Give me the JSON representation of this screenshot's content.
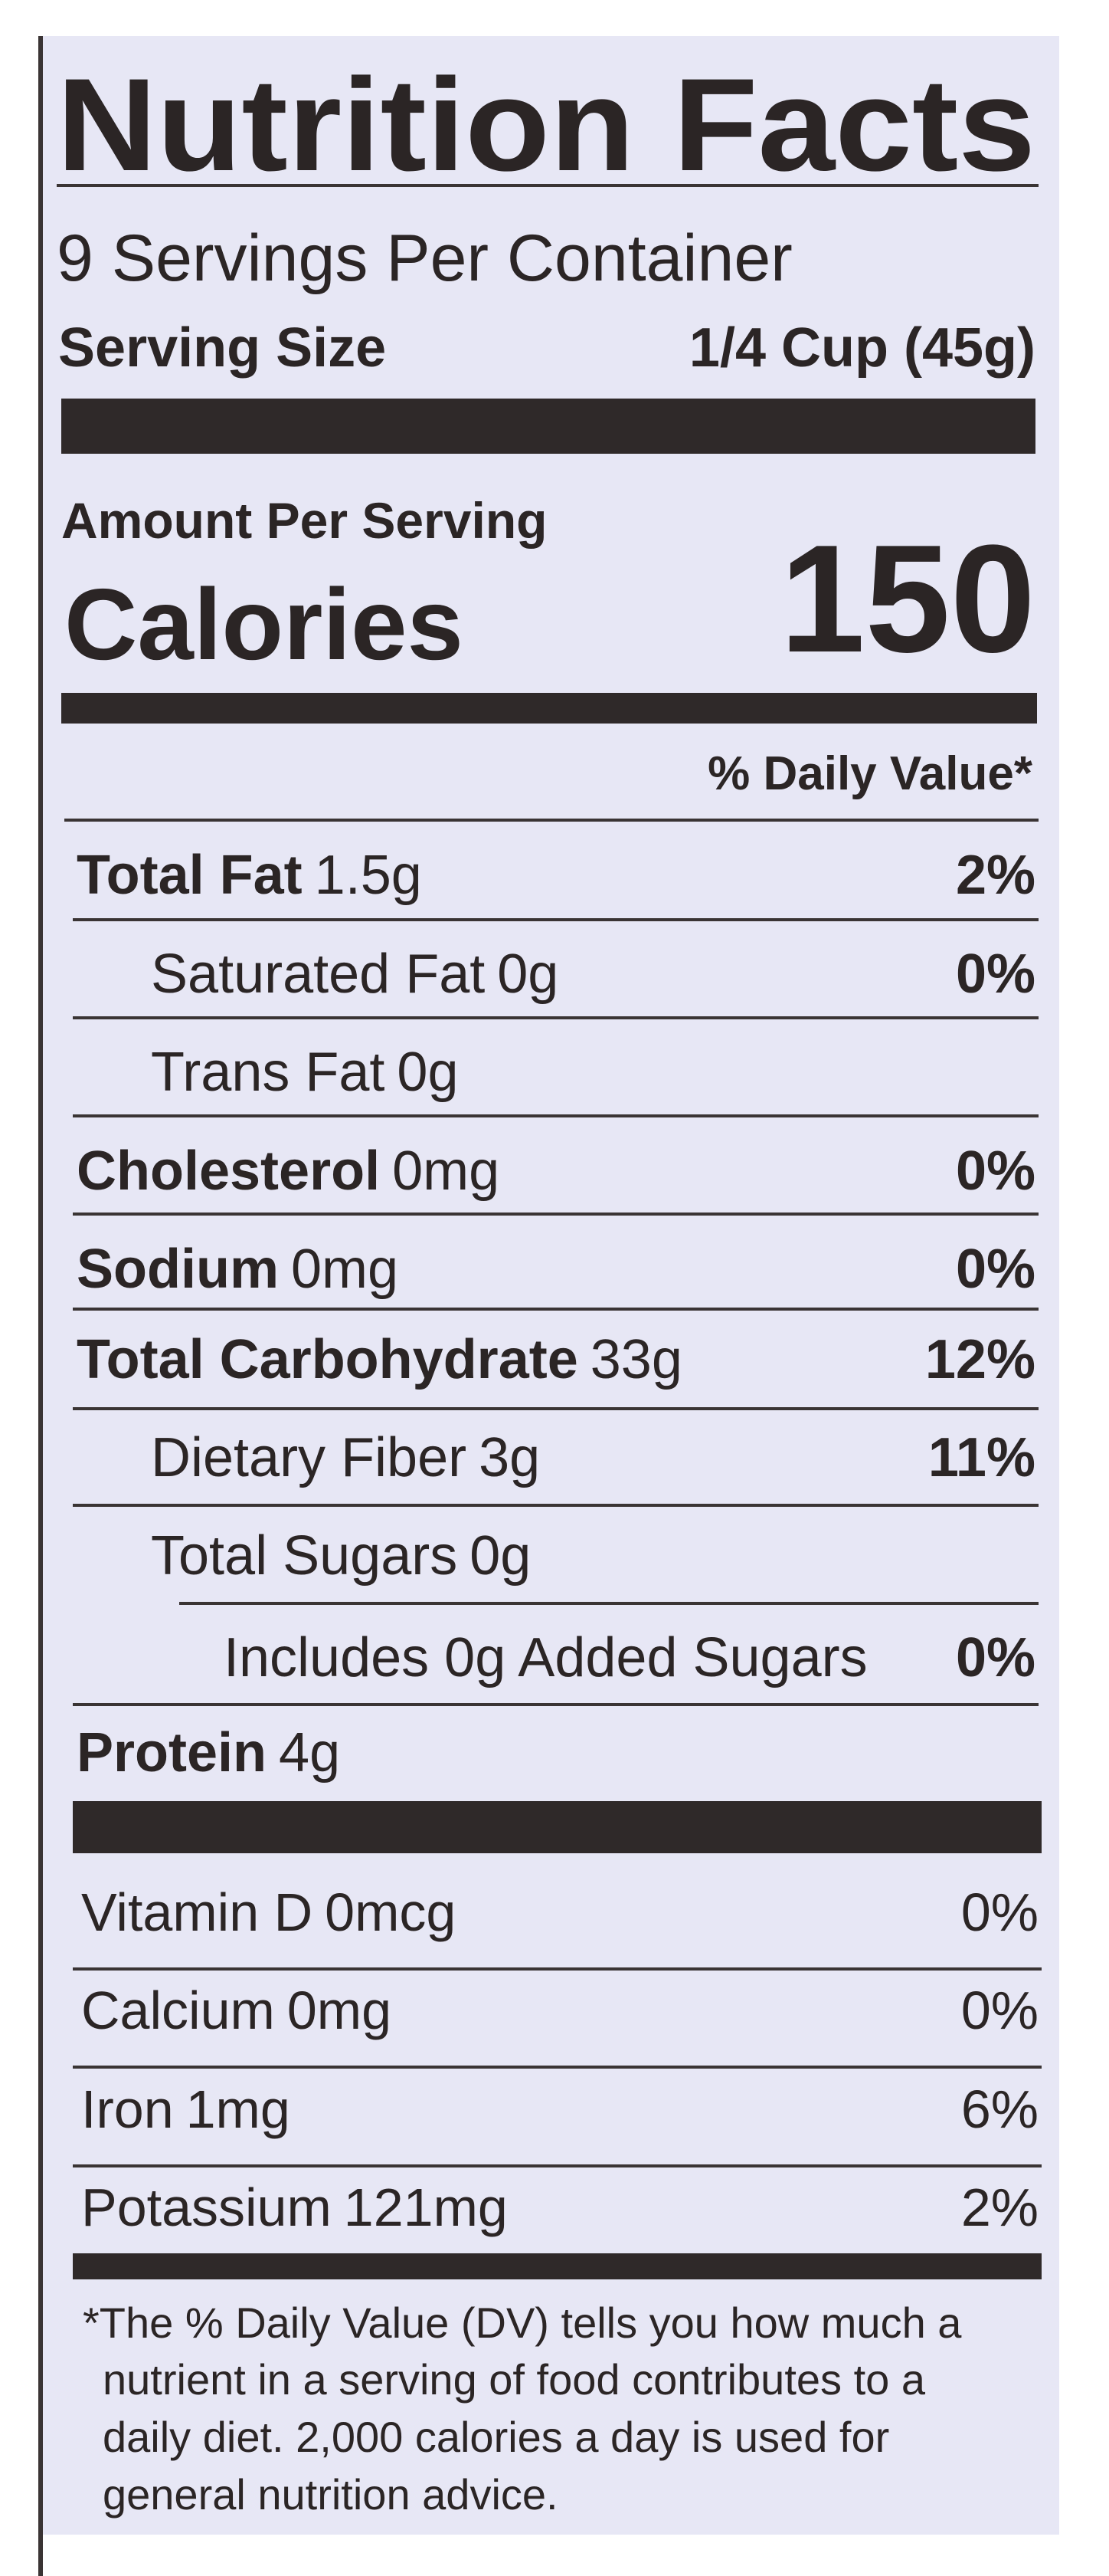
{
  "header": {
    "title": "Nutrition Facts"
  },
  "servings": "9 Servings Per Container",
  "serving_size": {
    "label": "Serving Size",
    "value": "1/4 Cup (45g)"
  },
  "calories": {
    "amount_label": "Amount Per Serving",
    "label": "Calories",
    "value": "150"
  },
  "dv_header": "% Daily Value*",
  "rows": [
    {
      "name": "Total Fat",
      "amount": "1.5g",
      "dv": "2%"
    },
    {
      "name": "Saturated Fat",
      "amount": "0g",
      "dv": "0%"
    },
    {
      "name": "Trans Fat",
      "amount": "0g"
    },
    {
      "name": "Cholesterol",
      "amount": "0mg",
      "dv": "0%"
    },
    {
      "name": "Sodium",
      "amount": "0mg",
      "dv": "0%"
    },
    {
      "name": "Total Carbohydrate",
      "amount": "33g",
      "dv": "12%"
    },
    {
      "name": "Dietary Fiber",
      "amount": "3g",
      "dv": "11%"
    },
    {
      "name": "Total Sugars",
      "amount": "0g"
    },
    {
      "name": "Includes 0g Added Sugars",
      "dv": "0%"
    },
    {
      "name": "Protein",
      "amount": "4g"
    }
  ],
  "vitamins": [
    {
      "name": "Vitamin D",
      "amount": "0mcg",
      "dv": "0%"
    },
    {
      "name": "Calcium",
      "amount": "0mg",
      "dv": "0%"
    },
    {
      "name": "Iron",
      "amount": "1mg",
      "dv": "6%"
    },
    {
      "name": "Potassium",
      "amount": "121mg",
      "dv": "2%"
    }
  ],
  "footnote": {
    "lines": [
      "*The % Daily Value (DV) tells you how much a",
      "nutrient in a serving of food contributes to a",
      "daily diet. 2,000 calories a day is used for",
      "general nutrition advice."
    ]
  }
}
